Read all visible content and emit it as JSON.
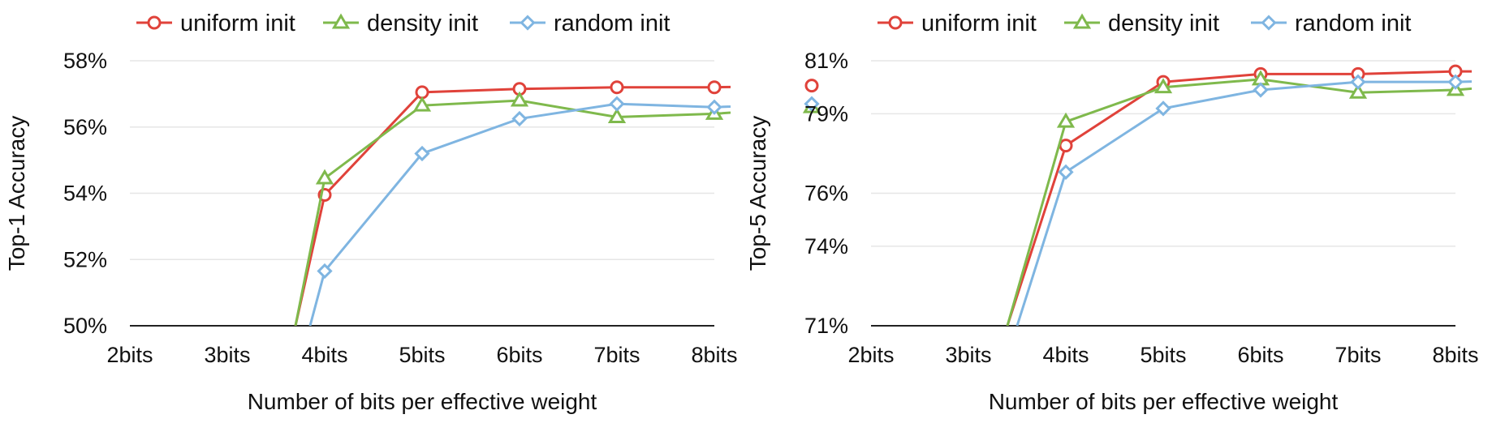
{
  "colors": {
    "uniform": "#e0423a",
    "density": "#7fb94c",
    "random": "#7fb5e1",
    "grid": "#e6e6e6",
    "axis": "#222222"
  },
  "chart_data": [
    {
      "type": "line",
      "xlabel": "Number of bits per effective weight",
      "ylabel": "Top-1 Accuracy",
      "categories": [
        "2bits",
        "3bits",
        "4bits",
        "5bits",
        "6bits",
        "7bits",
        "8bits"
      ],
      "ylim": [
        50,
        58
      ],
      "yticks": [
        50,
        52,
        54,
        56,
        58
      ],
      "ytick_labels": [
        "50%",
        "52%",
        "54%",
        "56%",
        "58%"
      ],
      "grid": true,
      "legend": "top",
      "series": [
        {
          "name": "uniform init",
          "color_key": "uniform",
          "marker": "circle-icon",
          "x": [
            1.7,
            2,
            3,
            4,
            5,
            6
          ],
          "values": [
            50,
            53.95,
            57.05,
            57.15,
            57.2,
            57.2
          ]
        },
        {
          "name": "density init",
          "color_key": "density",
          "marker": "triangle-icon",
          "x": [
            1.7,
            2,
            3,
            4,
            5,
            6
          ],
          "values": [
            50,
            54.45,
            56.65,
            56.8,
            56.3,
            56.4
          ]
        },
        {
          "name": "random init",
          "color_key": "random",
          "marker": "diamond-icon",
          "x": [
            1.85,
            2,
            3,
            4,
            5,
            6
          ],
          "values": [
            50,
            51.65,
            55.2,
            56.25,
            56.7,
            56.6
          ]
        }
      ],
      "series_tail": [
        {
          "x": 7,
          "uniform": 57.25,
          "density": 56.6,
          "random": 56.7
        }
      ]
    },
    {
      "type": "line",
      "xlabel": "Number of bits per effective weight",
      "ylabel": "Top-5 Accuracy",
      "categories": [
        "2bits",
        "3bits",
        "4bits",
        "5bits",
        "6bits",
        "7bits",
        "8bits"
      ],
      "ylim": [
        71,
        81
      ],
      "yticks": [
        71,
        74,
        76,
        79,
        81
      ],
      "ytick_labels": [
        "71%",
        "74%",
        "76%",
        "79%",
        "81%"
      ],
      "grid": true,
      "legend": "top",
      "series": [
        {
          "name": "uniform init",
          "color_key": "uniform",
          "marker": "circle-icon",
          "x": [
            1.4,
            2,
            3,
            4,
            5,
            6
          ],
          "values": [
            71,
            77.8,
            80.2,
            80.5,
            80.5,
            80.6
          ]
        },
        {
          "name": "density init",
          "color_key": "density",
          "marker": "triangle-icon",
          "x": [
            1.4,
            2,
            3,
            4,
            5,
            6
          ],
          "values": [
            71,
            78.7,
            80,
            80.3,
            79.8,
            79.9
          ]
        },
        {
          "name": "random init",
          "color_key": "random",
          "marker": "diamond-icon",
          "x": [
            1.5,
            2,
            3,
            4,
            5,
            6
          ],
          "values": [
            71,
            76.8,
            79.2,
            79.9,
            80.2,
            80.2
          ]
        }
      ],
      "series_tail": [
        {
          "x": 7,
          "uniform": 80.6,
          "density": 80.2,
          "random": 80.3
        }
      ]
    }
  ]
}
